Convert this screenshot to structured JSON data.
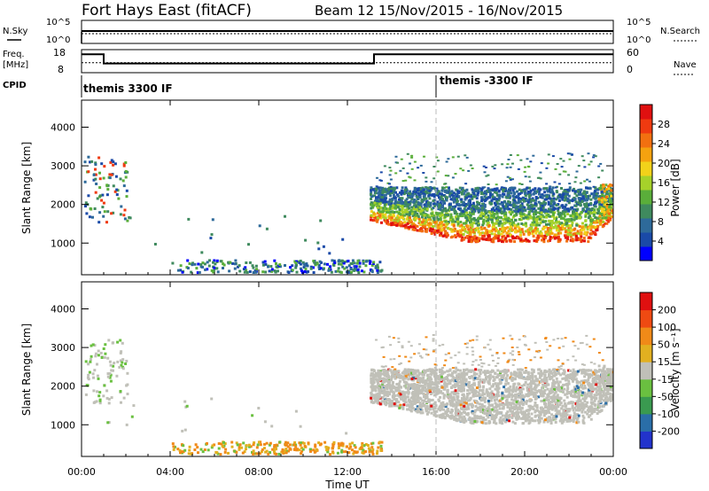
{
  "header": {
    "title": "Fort Hays East (fitACF)",
    "beam_date": "Beam 12  15/Nov/2015 - 16/Nov/2015"
  },
  "summary_labels": {
    "nsky": "N.Sky",
    "nsearch": "N.Search",
    "freq_top": "Freq.",
    "freq_unit": "[MHz]",
    "nave": "Nave",
    "cpid": "CPID",
    "nsky_ticks": [
      "10^5",
      "10^0"
    ],
    "nsearch_ticks": [
      "10^5",
      "10^0"
    ],
    "freq_ticks": [
      "18",
      "8"
    ],
    "nave_ticks": [
      "60",
      "0"
    ]
  },
  "cpid_segments": [
    {
      "label": "themis 3300 IF",
      "start_hour": 0
    },
    {
      "label": "themis -3300 IF",
      "start_hour": 16
    }
  ],
  "panels": {
    "power": {
      "ylabel": "Slant Range [km]",
      "colorbar_label": "Power [dB]",
      "colorbar_ticks": [
        "28",
        "24",
        "20",
        "16",
        "12",
        "8",
        "4"
      ]
    },
    "velocity": {
      "ylabel": "Slant Range [km]",
      "colorbar_label": "Velocity [m s⁻¹]",
      "colorbar_ticks": [
        "200",
        "100",
        "50",
        "15",
        "-15",
        "-50",
        "-100",
        "-200"
      ]
    }
  },
  "colors": {
    "power_scale": [
      "#0000ff",
      "#1a4aa8",
      "#2e6a9a",
      "#3f8a5e",
      "#5aae3a",
      "#a6d22a",
      "#f2d21a",
      "#f5a20f",
      "#f27010",
      "#ef3a10",
      "#e01010"
    ],
    "velocity_scale": [
      "#2233cc",
      "#2a6ea8",
      "#3a9a50",
      "#6ac040",
      "#c0c0b8",
      "#e2b020",
      "#f08a18",
      "#ef4a12",
      "#e01010"
    ],
    "ground_scatter_gray": "#c0c0b8",
    "dashed_marker": "#bbbbbb"
  },
  "chart_data": [
    {
      "type": "line",
      "title": "N.Sky / N.Search",
      "x_units": "hours UT",
      "xlim": [
        0,
        24
      ],
      "ylim_log10": [
        0,
        5
      ],
      "series": [
        {
          "name": "N.Sky",
          "x": [
            0,
            0.01,
            24
          ],
          "y_log10": [
            0,
            3.6,
            3.6
          ]
        },
        {
          "name": "N.Search",
          "x": [
            0,
            24
          ],
          "y_log10": [
            3.0,
            3.0
          ]
        }
      ]
    },
    {
      "type": "line",
      "title": "Freq. / Nave",
      "x_units": "hours UT",
      "xlim": [
        0,
        24
      ],
      "series": [
        {
          "name": "Freq.",
          "units": "MHz",
          "ylim": [
            8,
            18
          ],
          "x": [
            0,
            1,
            1,
            13.2,
            13.2,
            24
          ],
          "y": [
            16,
            16,
            12,
            12,
            16,
            16
          ]
        },
        {
          "name": "Nave",
          "ylim": [
            0,
            60
          ],
          "x": [
            0,
            24
          ],
          "y": [
            26,
            26
          ]
        }
      ]
    },
    {
      "type": "heatmap",
      "title": "Power",
      "xlabel": "Time UT",
      "ylabel": "Slant Range [km]",
      "xlim": [
        0,
        24
      ],
      "ylim": [
        180,
        4700
      ],
      "x_tick_labels": [
        "00:00",
        "04:00",
        "08:00",
        "12:00",
        "16:00",
        "20:00",
        "00:00"
      ],
      "x_tick_values": [
        0,
        4,
        8,
        12,
        16,
        20,
        24
      ],
      "y_tick_values": [
        1000,
        2000,
        3000,
        4000
      ],
      "colorbar": {
        "label": "Power [dB]",
        "ticks": [
          28,
          24,
          20,
          16,
          12,
          8,
          4
        ],
        "range": [
          0,
          30
        ]
      },
      "features": [
        {
          "name": "early echoes",
          "x": [
            0.2,
            2.2
          ],
          "range": [
            1500,
            3200
          ],
          "value_db": 12
        },
        {
          "name": "near-range scatter",
          "x": [
            4,
            13
          ],
          "range": [
            180,
            500
          ],
          "value_db": 8
        },
        {
          "name": "main band",
          "x": [
            13.0,
            23.9
          ],
          "range": [
            900,
            2400
          ],
          "peak_db": 28
        },
        {
          "name": "sparse upper",
          "x": [
            13.5,
            23.5
          ],
          "range": [
            2400,
            3300
          ],
          "value_db": 8
        }
      ]
    },
    {
      "type": "heatmap",
      "title": "Velocity",
      "xlabel": "Time UT",
      "ylabel": "Slant Range [km]",
      "xlim": [
        0,
        24
      ],
      "ylim": [
        180,
        4700
      ],
      "x_tick_labels": [
        "00:00",
        "04:00",
        "08:00",
        "12:00",
        "16:00",
        "20:00",
        "00:00"
      ],
      "x_tick_values": [
        0,
        4,
        8,
        12,
        16,
        20,
        24
      ],
      "y_tick_values": [
        1000,
        2000,
        3000,
        4000
      ],
      "colorbar": {
        "label": "Velocity [m s⁻¹]",
        "ticks": [
          200,
          100,
          50,
          15,
          -15,
          -50,
          -100,
          -200
        ]
      },
      "features": [
        {
          "name": "ground scatter band",
          "x": [
            13.0,
            23.9
          ],
          "range": [
            1000,
            2400
          ],
          "value_ms": 0
        },
        {
          "name": "near-range flow",
          "x": [
            4,
            13
          ],
          "range": [
            180,
            500
          ],
          "value_ms": -40
        }
      ]
    }
  ]
}
